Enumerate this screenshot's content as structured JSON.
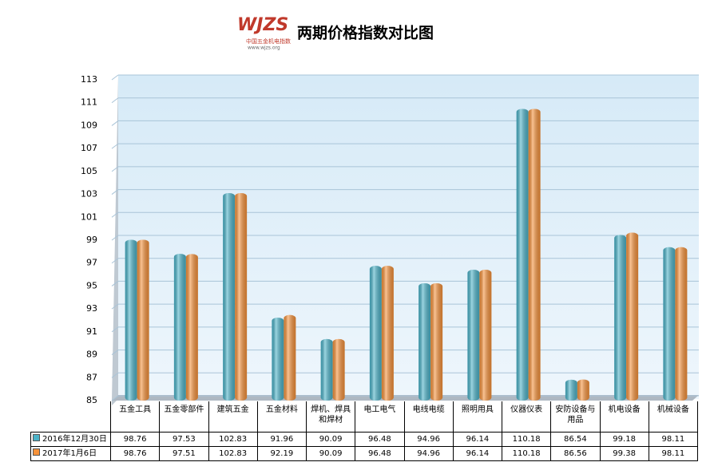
{
  "logo": {
    "mark": "WJZS",
    "name": "中国五金机电指数",
    "url": "www.wjzs.org"
  },
  "chart_data": {
    "type": "bar",
    "title": "两期价格指数对比图",
    "categories": [
      "五金工具",
      "五金零部件",
      "建筑五金",
      "五金材料",
      "焊机、焊具和焊材",
      "电工电气",
      "电线电缆",
      "照明用具",
      "仪器仪表",
      "安防设备与用品",
      "机电设备",
      "机械设备"
    ],
    "series": [
      {
        "name": "2016年12月30日",
        "color": "#4bb3c9",
        "values": [
          98.76,
          97.53,
          102.83,
          91.96,
          90.09,
          96.48,
          94.96,
          96.14,
          110.18,
          86.54,
          99.18,
          98.11
        ]
      },
      {
        "name": "2017年1月6日",
        "color": "#f7923a",
        "values": [
          98.76,
          97.51,
          102.83,
          92.19,
          90.09,
          96.48,
          94.96,
          96.14,
          110.18,
          86.56,
          99.38,
          98.11
        ]
      }
    ],
    "ylim": [
      85,
      113
    ],
    "yticks": [
      85,
      87,
      89,
      91,
      93,
      95,
      97,
      99,
      101,
      103,
      105,
      107,
      109,
      111,
      113
    ],
    "grid": true
  }
}
